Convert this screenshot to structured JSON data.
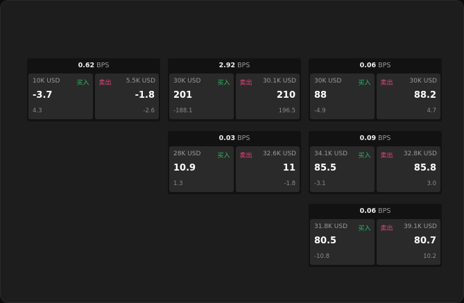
{
  "unit": "BPS",
  "buy_label": "买入",
  "sell_label": "卖出",
  "colors": {
    "buy": "#2fb865",
    "sell": "#e8467a"
  },
  "panels": [
    {
      "spread": "0.62",
      "bid": {
        "size": "10K USD",
        "price": "-3.7",
        "change": "4.3"
      },
      "ask": {
        "size": "5.5K USD",
        "price": "-1.8",
        "change": "-2.6"
      }
    },
    {
      "spread": "2.92",
      "bid": {
        "size": "30K USD",
        "price": "201",
        "change": "-188.1"
      },
      "ask": {
        "size": "30.1K USD",
        "price": "210",
        "change": "196.5"
      }
    },
    {
      "spread": "0.06",
      "bid": {
        "size": "30K USD",
        "price": "88",
        "change": "-4.9"
      },
      "ask": {
        "size": "30K USD",
        "price": "88.2",
        "change": "4.7"
      }
    },
    {
      "spread": "0.03",
      "bid": {
        "size": "28K USD",
        "price": "10.9",
        "change": "1.3"
      },
      "ask": {
        "size": "32.6K USD",
        "price": "11",
        "change": "-1.8"
      }
    },
    {
      "spread": "0.09",
      "bid": {
        "size": "34.1K USD",
        "price": "85.5",
        "change": "-3.1"
      },
      "ask": {
        "size": "32.8K USD",
        "price": "85.8",
        "change": "3.0"
      }
    },
    {
      "spread": "0.06",
      "bid": {
        "size": "31.8K USD",
        "price": "80.5",
        "change": "-10.8"
      },
      "ask": {
        "size": "39.1K USD",
        "price": "80.7",
        "change": "10.2"
      }
    }
  ]
}
